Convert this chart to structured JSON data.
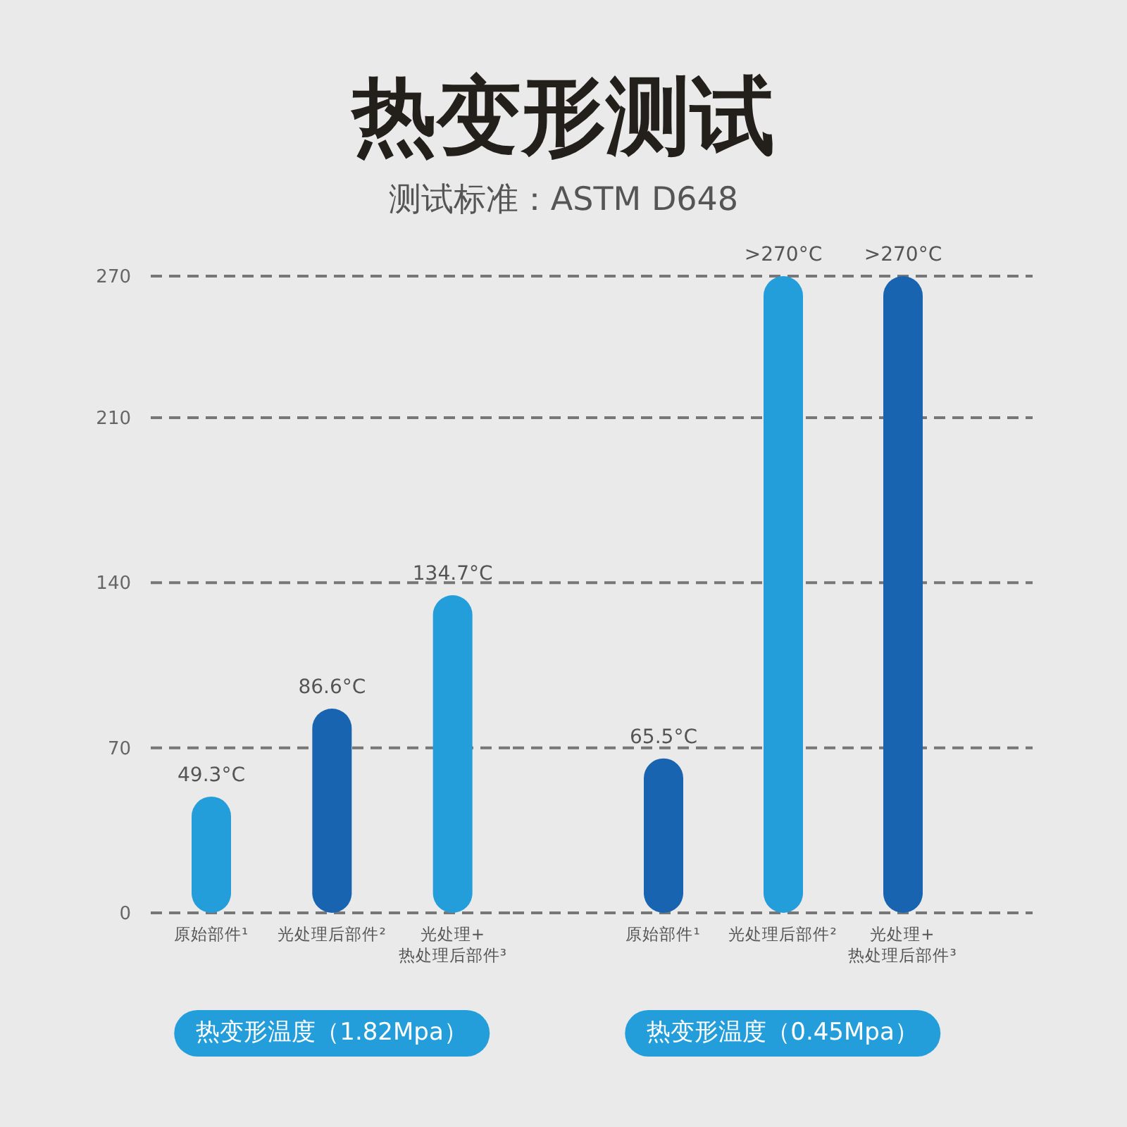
{
  "chart_data": [
    {
      "type": "bar",
      "title": "热变形测试",
      "subtitle": "测试标准：ASTM D648",
      "xlabel": "热变形温度（1.82Mpa）",
      "categories": [
        "原始部件¹",
        "光处理后部件²",
        "光处理+\n热处理后部件³"
      ],
      "values": [
        49.3,
        86.6,
        134.7
      ],
      "colors": [
        "#249edb",
        "#1864b1",
        "#249edb"
      ],
      "value_labels": [
        "49.3°C",
        "86.6°C",
        "134.7°C"
      ],
      "ylim": [
        0,
        270
      ],
      "yticks": [
        0,
        70,
        140,
        210,
        270
      ],
      "grid": "y"
    },
    {
      "type": "bar",
      "xlabel": "热变形温度（0.45Mpa）",
      "categories": [
        "原始部件¹",
        "光处理后部件²",
        "光处理+\n热处理后部件³"
      ],
      "values": [
        65.5,
        270,
        270
      ],
      "colors": [
        "#1864b1",
        "#249edb",
        "#1864b1"
      ],
      "value_labels": [
        "65.5°C",
        ">270°C",
        ">270°C"
      ],
      "ylim": [
        0,
        270
      ],
      "yticks": [
        0,
        70,
        140,
        210,
        270
      ],
      "grid": "y",
      "tick_labels": "x"
    }
  ]
}
